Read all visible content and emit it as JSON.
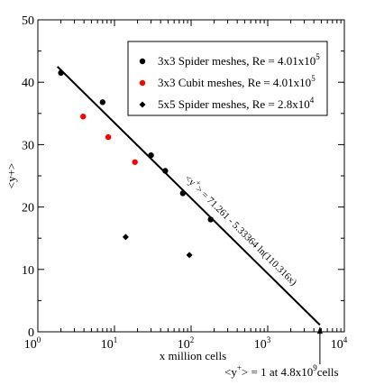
{
  "chart_data": {
    "type": "scatter",
    "xlabel": "x million cells",
    "ylabel": "<y+>",
    "xscale": "log",
    "xlim": [
      1,
      10000
    ],
    "ylim": [
      0,
      50
    ],
    "x_ticks": [
      1,
      10,
      100,
      1000,
      10000
    ],
    "x_tick_labels": [
      "10",
      "10",
      "10",
      "10",
      "10"
    ],
    "x_tick_exponents": [
      "0",
      "1",
      "2",
      "3",
      "4"
    ],
    "y_ticks": [
      0,
      10,
      20,
      30,
      40,
      50
    ],
    "y_tick_labels": [
      "0",
      "10",
      "20",
      "30",
      "40",
      "50"
    ],
    "grid": false,
    "legend": {
      "placement": "top-right",
      "entries": [
        {
          "label": "3x3 Spider meshes, Re = 4.01x10",
          "exponent": "5",
          "marker": "circle",
          "color": "#000000"
        },
        {
          "label": "3x3 Cubit meshes, Re = 4.01x10",
          "exponent": "5",
          "marker": "circle",
          "color": "#ff0000"
        },
        {
          "label": "5x5 Spider meshes, Re = 2.8x10",
          "exponent": "4",
          "marker": "diamond",
          "color": "#000000"
        }
      ]
    },
    "series": [
      {
        "name": "3x3 Spider meshes, Re = 4.01x10^5",
        "marker": "circle",
        "color": "#000000",
        "points": [
          [
            2.0,
            41.5
          ],
          [
            7.0,
            36.8
          ],
          [
            30,
            28.3
          ],
          [
            46,
            25.8
          ],
          [
            78,
            22.2
          ],
          [
            180,
            18.0
          ]
        ]
      },
      {
        "name": "3x3 Cubit meshes, Re = 4.01x10^5",
        "marker": "circle",
        "color": "#ff0000",
        "points": [
          [
            3.9,
            34.5
          ],
          [
            8.3,
            31.2
          ],
          [
            18.5,
            27.2
          ]
        ]
      },
      {
        "name": "5x5 Spider meshes, Re = 2.8x10^4",
        "marker": "diamond",
        "color": "#000000",
        "points": [
          [
            14,
            15.2
          ],
          [
            95,
            12.3
          ]
        ]
      }
    ],
    "fit_line": {
      "x_range": [
        1.8,
        4800
      ],
      "y_range": [
        42.5,
        1.1
      ],
      "label_prefix": "<y",
      "label_sup": "+",
      "label_suffix": "> = 71.261 - 5.33364 ln(110.316x)"
    },
    "annotation": {
      "x": 4800,
      "y": 1,
      "prefix": "<y",
      "sup": "+",
      "middle": "> = 1  at  4.8x10",
      "exponent": "9",
      "suffix": "cells"
    }
  }
}
